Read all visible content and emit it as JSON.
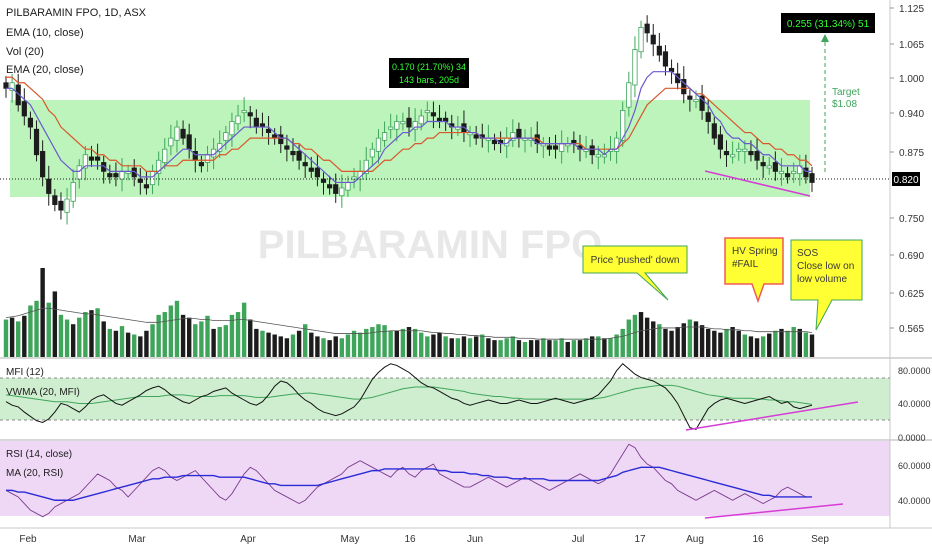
{
  "header": {
    "title": "PILBARAMIN FPO, 1D, ASX",
    "ind1": "EMA (10, close)",
    "ind2": "Vol (20)",
    "ind3": "EMA (20, close)"
  },
  "watermark": "PILBARAMIN FPO",
  "colors": {
    "up": "#3fa55b",
    "down": "#1c1c1c",
    "ema10": "#6a5acd",
    "ema20": "#d9572b",
    "zone": "#a6f0a6",
    "mfi_bg": "#cfeecf",
    "rsi_bg": "#efd8f6",
    "callout": "#ffff33",
    "callout_border": "#f15a5a"
  },
  "chart_data": [
    {
      "type": "candlestick",
      "name": "price",
      "x_tick_labels": [
        "Feb",
        "Mar",
        "Apr",
        "May",
        "16",
        "Jun",
        "Jul",
        "17",
        "Aug",
        "16",
        "Sep"
      ],
      "y_tick_labels": [
        "1.125",
        "1.065",
        "1.000",
        "0.940",
        "0.875",
        "0.820",
        "0.750",
        "0.690",
        "0.625",
        "0.565"
      ],
      "ylim": [
        0.53,
        1.135
      ],
      "current_price": "0.820",
      "closes": [
        0.99,
        1.0,
        0.96,
        0.94,
        0.92,
        0.87,
        0.83,
        0.8,
        0.78,
        0.77,
        0.79,
        0.82,
        0.85,
        0.87,
        0.86,
        0.86,
        0.84,
        0.83,
        0.83,
        0.84,
        0.84,
        0.83,
        0.82,
        0.81,
        0.84,
        0.86,
        0.88,
        0.9,
        0.92,
        0.9,
        0.88,
        0.86,
        0.85,
        0.87,
        0.88,
        0.89,
        0.91,
        0.93,
        0.94,
        0.95,
        0.94,
        0.92,
        0.92,
        0.91,
        0.9,
        0.89,
        0.88,
        0.87,
        0.86,
        0.85,
        0.84,
        0.83,
        0.82,
        0.81,
        0.8,
        0.81,
        0.82,
        0.83,
        0.84,
        0.86,
        0.88,
        0.9,
        0.91,
        0.92,
        0.93,
        0.93,
        0.92,
        0.93,
        0.94,
        0.95,
        0.94,
        0.93,
        0.93,
        0.92,
        0.92,
        0.91,
        0.91,
        0.9,
        0.9,
        0.9,
        0.89,
        0.89,
        0.9,
        0.91,
        0.9,
        0.9,
        0.9,
        0.89,
        0.89,
        0.88,
        0.88,
        0.89,
        0.89,
        0.89,
        0.88,
        0.88,
        0.87,
        0.87,
        0.87,
        0.88,
        0.9,
        0.95,
        1.0,
        1.06,
        1.1,
        1.09,
        1.07,
        1.05,
        1.03,
        1.02,
        1.0,
        0.98,
        0.97,
        0.97,
        0.95,
        0.93,
        0.9,
        0.88,
        0.87,
        0.87,
        0.88,
        0.88,
        0.87,
        0.86,
        0.85,
        0.85,
        0.84,
        0.84,
        0.83,
        0.84,
        0.85,
        0.83,
        0.82
      ],
      "ema10": [
        0.99,
        0.99,
        0.98,
        0.97,
        0.96,
        0.94,
        0.92,
        0.9,
        0.88,
        0.86,
        0.85,
        0.84,
        0.84,
        0.85,
        0.85,
        0.85,
        0.85,
        0.84,
        0.84,
        0.84,
        0.84,
        0.84,
        0.83,
        0.83,
        0.83,
        0.84,
        0.85,
        0.86,
        0.87,
        0.88,
        0.88,
        0.87,
        0.87,
        0.87,
        0.87,
        0.88,
        0.89,
        0.9,
        0.91,
        0.92,
        0.92,
        0.92,
        0.92,
        0.92,
        0.91,
        0.9,
        0.9,
        0.89,
        0.88,
        0.87,
        0.86,
        0.85,
        0.84,
        0.83,
        0.82,
        0.82,
        0.82,
        0.82,
        0.83,
        0.84,
        0.85,
        0.86,
        0.88,
        0.89,
        0.9,
        0.91,
        0.91,
        0.92,
        0.92,
        0.93,
        0.93,
        0.93,
        0.93,
        0.92,
        0.92,
        0.92,
        0.91,
        0.91,
        0.9,
        0.9,
        0.9,
        0.89,
        0.89,
        0.9,
        0.9,
        0.9,
        0.9,
        0.89,
        0.89,
        0.89,
        0.89,
        0.89,
        0.89,
        0.89,
        0.88,
        0.88,
        0.88,
        0.88,
        0.87,
        0.88,
        0.88,
        0.9,
        0.92,
        0.95,
        0.99,
        1.01,
        1.02,
        1.02,
        1.02,
        1.02,
        1.01,
        1.0,
        0.99,
        0.98,
        0.97,
        0.96,
        0.94,
        0.93,
        0.91,
        0.9,
        0.9,
        0.89,
        0.89,
        0.88,
        0.87,
        0.87,
        0.86,
        0.85,
        0.85,
        0.85,
        0.85,
        0.84,
        0.84
      ],
      "ema20": [
        1.01,
        1.01,
        1.0,
        1.0,
        0.99,
        0.98,
        0.97,
        0.95,
        0.94,
        0.92,
        0.91,
        0.9,
        0.89,
        0.88,
        0.88,
        0.87,
        0.87,
        0.86,
        0.86,
        0.85,
        0.85,
        0.85,
        0.85,
        0.84,
        0.84,
        0.84,
        0.85,
        0.85,
        0.85,
        0.86,
        0.86,
        0.86,
        0.86,
        0.86,
        0.86,
        0.87,
        0.87,
        0.88,
        0.88,
        0.89,
        0.9,
        0.9,
        0.9,
        0.9,
        0.9,
        0.9,
        0.9,
        0.89,
        0.89,
        0.88,
        0.88,
        0.87,
        0.86,
        0.86,
        0.85,
        0.84,
        0.84,
        0.84,
        0.84,
        0.84,
        0.84,
        0.85,
        0.86,
        0.86,
        0.87,
        0.88,
        0.88,
        0.89,
        0.89,
        0.9,
        0.9,
        0.91,
        0.91,
        0.91,
        0.91,
        0.91,
        0.91,
        0.91,
        0.9,
        0.9,
        0.9,
        0.9,
        0.9,
        0.9,
        0.9,
        0.9,
        0.9,
        0.9,
        0.89,
        0.89,
        0.89,
        0.89,
        0.89,
        0.89,
        0.89,
        0.88,
        0.88,
        0.88,
        0.88,
        0.88,
        0.88,
        0.89,
        0.9,
        0.92,
        0.94,
        0.96,
        0.97,
        0.98,
        0.99,
        0.99,
        0.99,
        0.99,
        0.99,
        0.98,
        0.98,
        0.97,
        0.96,
        0.95,
        0.94,
        0.93,
        0.92,
        0.91,
        0.91,
        0.9,
        0.89,
        0.89,
        0.88,
        0.88,
        0.87,
        0.87,
        0.86,
        0.86,
        0.85
      ]
    },
    {
      "type": "bar",
      "name": "Vol (20)",
      "values": [
        40,
        42,
        38,
        44,
        55,
        60,
        95,
        58,
        70,
        45,
        40,
        35,
        42,
        48,
        50,
        52,
        38,
        30,
        28,
        33,
        26,
        24,
        22,
        28,
        35,
        45,
        48,
        55,
        60,
        45,
        42,
        35,
        38,
        44,
        30,
        32,
        34,
        45,
        48,
        58,
        40,
        30,
        28,
        26,
        24,
        22,
        20,
        24,
        28,
        35,
        26,
        22,
        20,
        18,
        22,
        20,
        24,
        28,
        26,
        30,
        32,
        35,
        34,
        28,
        28,
        30,
        32,
        30,
        26,
        22,
        24,
        26,
        22,
        20,
        20,
        22,
        20,
        22,
        24,
        20,
        18,
        18,
        20,
        22,
        18,
        16,
        18,
        18,
        20,
        18,
        18,
        20,
        16,
        18,
        18,
        20,
        22,
        22,
        20,
        20,
        24,
        30,
        40,
        45,
        48,
        42,
        38,
        35,
        30,
        28,
        32,
        36,
        40,
        38,
        34,
        30,
        28,
        26,
        30,
        32,
        28,
        24,
        22,
        20,
        22,
        25,
        28,
        30,
        28,
        32,
        30,
        26,
        24
      ],
      "ma20": [
        42,
        43,
        44,
        46,
        48,
        50,
        52,
        52,
        51,
        50,
        49,
        48,
        47,
        46,
        46,
        45,
        44,
        43,
        42,
        41,
        40,
        39,
        38,
        37,
        37,
        37,
        38,
        39,
        40,
        41,
        41,
        41,
        40,
        40,
        39,
        39,
        39,
        39,
        40,
        40,
        39,
        38,
        37,
        36,
        35,
        34,
        33,
        32,
        31,
        30,
        29,
        28,
        27,
        26,
        25,
        25,
        25,
        25,
        25,
        25,
        26,
        27,
        27,
        28,
        28,
        28,
        28,
        28,
        28,
        27,
        26,
        26,
        25,
        25,
        24,
        24,
        23,
        23,
        22,
        22,
        21,
        21,
        21,
        21,
        20,
        20,
        20,
        19,
        19,
        19,
        19,
        19,
        19,
        19,
        19,
        19,
        19,
        19,
        19,
        20,
        21,
        22,
        24,
        26,
        28,
        29,
        30,
        31,
        31,
        31,
        31,
        32,
        32,
        32,
        32,
        31,
        30,
        30,
        29,
        29,
        29,
        28,
        28,
        27,
        27,
        27,
        27,
        27,
        27,
        27,
        27,
        27,
        26
      ],
      "up": [
        1,
        0,
        1,
        0,
        1,
        1,
        0,
        1,
        0,
        1,
        1,
        0,
        1,
        1,
        0,
        1,
        0,
        1,
        0,
        1,
        0,
        1,
        0,
        0,
        1,
        1,
        1,
        1,
        1,
        0,
        0,
        1,
        1,
        1,
        0,
        1,
        1,
        1,
        1,
        1,
        0,
        0,
        1,
        0,
        0,
        0,
        0,
        1,
        0,
        1,
        0,
        0,
        1,
        0,
        0,
        1,
        1,
        1,
        1,
        1,
        1,
        1,
        1,
        1,
        0,
        1,
        0,
        1,
        1,
        1,
        0,
        0,
        1,
        0,
        1,
        0,
        1,
        0,
        1,
        0,
        0,
        1,
        1,
        1,
        0,
        1,
        0,
        0,
        1,
        0,
        1,
        1,
        0,
        1,
        0,
        1,
        0,
        1,
        0,
        1,
        1,
        1,
        1,
        1,
        0,
        0,
        0,
        1,
        0,
        0,
        0,
        0,
        1,
        0,
        0,
        0,
        0,
        0,
        1,
        0,
        0,
        1,
        0,
        0,
        1,
        0,
        1,
        0,
        1,
        1,
        0,
        1,
        0
      ]
    },
    {
      "type": "line",
      "name": "MFI (12)",
      "series_labels": [
        "MFI (12)",
        "VWMA (20, MFI)"
      ],
      "y_tick_labels": [
        "80.0000",
        "40.0000",
        "0.0000"
      ],
      "ylim": [
        0,
        88
      ],
      "mfi": [
        42,
        38,
        36,
        30,
        25,
        20,
        18,
        22,
        30,
        40,
        38,
        34,
        30,
        36,
        44,
        48,
        50,
        45,
        40,
        38,
        42,
        46,
        50,
        55,
        58,
        60,
        56,
        50,
        46,
        42,
        40,
        44,
        48,
        50,
        54,
        56,
        58,
        52,
        48,
        44,
        40,
        38,
        42,
        50,
        60,
        66,
        64,
        58,
        50,
        44,
        40,
        34,
        30,
        28,
        26,
        28,
        32,
        36,
        44,
        56,
        68,
        76,
        82,
        86,
        84,
        80,
        76,
        70,
        64,
        60,
        58,
        54,
        50,
        46,
        44,
        40,
        38,
        40,
        42,
        44,
        42,
        40,
        40,
        42,
        44,
        42,
        40,
        40,
        42,
        44,
        46,
        44,
        42,
        40,
        42,
        44,
        46,
        50,
        58,
        66,
        78,
        86,
        80,
        74,
        70,
        68,
        66,
        62,
        58,
        50,
        40,
        26,
        12,
        10,
        22,
        34,
        40,
        44,
        46,
        44,
        42,
        40,
        42,
        44,
        46,
        48,
        44,
        40,
        42,
        36,
        34,
        36,
        38
      ],
      "vwma": [
        50,
        49,
        48,
        47,
        46,
        45,
        44,
        43,
        42,
        42,
        42,
        41,
        40,
        40,
        40,
        41,
        42,
        43,
        44,
        45,
        46,
        47,
        48,
        48,
        48,
        48,
        49,
        50,
        50,
        50,
        49,
        48,
        48,
        48,
        48,
        49,
        49,
        49,
        49,
        49,
        48,
        47,
        47,
        47,
        48,
        49,
        50,
        51,
        51,
        52,
        52,
        51,
        50,
        49,
        48,
        47,
        46,
        45,
        45,
        46,
        47,
        49,
        51,
        53,
        55,
        57,
        58,
        59,
        59,
        59,
        59,
        58,
        57,
        56,
        55,
        54,
        52,
        51,
        50,
        49,
        48,
        48,
        47,
        46,
        46,
        45,
        45,
        45,
        45,
        45,
        45,
        45,
        45,
        45,
        45,
        45,
        45,
        46,
        47,
        49,
        51,
        53,
        55,
        57,
        58,
        59,
        60,
        61,
        61,
        61,
        60,
        58,
        56,
        54,
        52,
        50,
        49,
        48,
        47,
        46,
        46,
        46,
        46,
        45,
        45,
        44,
        44,
        43,
        42,
        42,
        41,
        40,
        39
      ]
    },
    {
      "type": "line",
      "name": "RSI (14, close)",
      "series_labels": [
        "RSI (14, close)",
        "MA (20, RSI)"
      ],
      "y_tick_labels": [
        "60.0000",
        "40.0000"
      ],
      "ylim": [
        26,
        74
      ],
      "rsi": [
        44,
        42,
        40,
        36,
        32,
        30,
        28,
        30,
        34,
        36,
        38,
        40,
        42,
        46,
        50,
        54,
        52,
        50,
        46,
        44,
        40,
        44,
        48,
        52,
        56,
        58,
        56,
        52,
        50,
        52,
        54,
        56,
        52,
        48,
        44,
        40,
        38,
        42,
        48,
        54,
        58,
        56,
        52,
        48,
        44,
        42,
        40,
        38,
        36,
        38,
        42,
        46,
        48,
        50,
        52,
        54,
        58,
        60,
        62,
        60,
        58,
        56,
        54,
        52,
        56,
        58,
        54,
        52,
        56,
        58,
        60,
        54,
        52,
        50,
        48,
        46,
        46,
        48,
        50,
        52,
        50,
        48,
        46,
        48,
        50,
        52,
        50,
        48,
        46,
        44,
        46,
        48,
        50,
        52,
        54,
        52,
        50,
        48,
        50,
        54,
        60,
        66,
        72,
        70,
        64,
        60,
        58,
        54,
        50,
        48,
        44,
        42,
        40,
        38,
        40,
        42,
        44,
        42,
        40,
        38,
        40,
        42,
        40,
        38,
        36,
        38,
        40,
        44,
        46,
        44,
        42,
        40,
        40
      ],
      "ma": [
        44,
        44,
        43,
        43,
        42,
        41,
        40,
        39,
        38,
        38,
        38,
        38,
        39,
        40,
        41,
        42,
        43,
        44,
        45,
        46,
        47,
        48,
        49,
        50,
        51,
        51,
        52,
        52,
        52,
        53,
        53,
        53,
        53,
        53,
        53,
        52,
        52,
        52,
        52,
        52,
        51,
        50,
        49,
        48,
        48,
        47,
        47,
        47,
        47,
        47,
        47,
        47,
        48,
        49,
        50,
        51,
        52,
        53,
        54,
        55,
        56,
        56,
        57,
        57,
        57,
        57,
        57,
        57,
        57,
        57,
        57,
        56,
        56,
        55,
        55,
        55,
        54,
        54,
        53,
        53,
        52,
        52,
        52,
        51,
        51,
        51,
        51,
        51,
        51,
        50,
        50,
        50,
        50,
        50,
        50,
        50,
        50,
        50,
        51,
        52,
        53,
        55,
        56,
        57,
        58,
        58,
        58,
        58,
        57,
        56,
        55,
        54,
        53,
        52,
        51,
        50,
        49,
        48,
        47,
        46,
        45,
        44,
        43,
        42,
        41,
        41,
        40,
        40,
        40,
        40,
        40,
        40,
        40
      ]
    }
  ],
  "annotations": {
    "range_label_1": "0.170 (21.70%) 34",
    "range_label_2": "143 bars, 205d",
    "target_box": "0.255 (31.34%) 51",
    "target_text_1": "Target",
    "target_text_2": "$1.08",
    "callout1": "Price 'pushed' down",
    "callout2_l1": "HV Spring",
    "callout2_l2": "#FAIL",
    "callout3_l1": "SOS",
    "callout3_l2": "Close low on",
    "callout3_l3": "low volume"
  }
}
